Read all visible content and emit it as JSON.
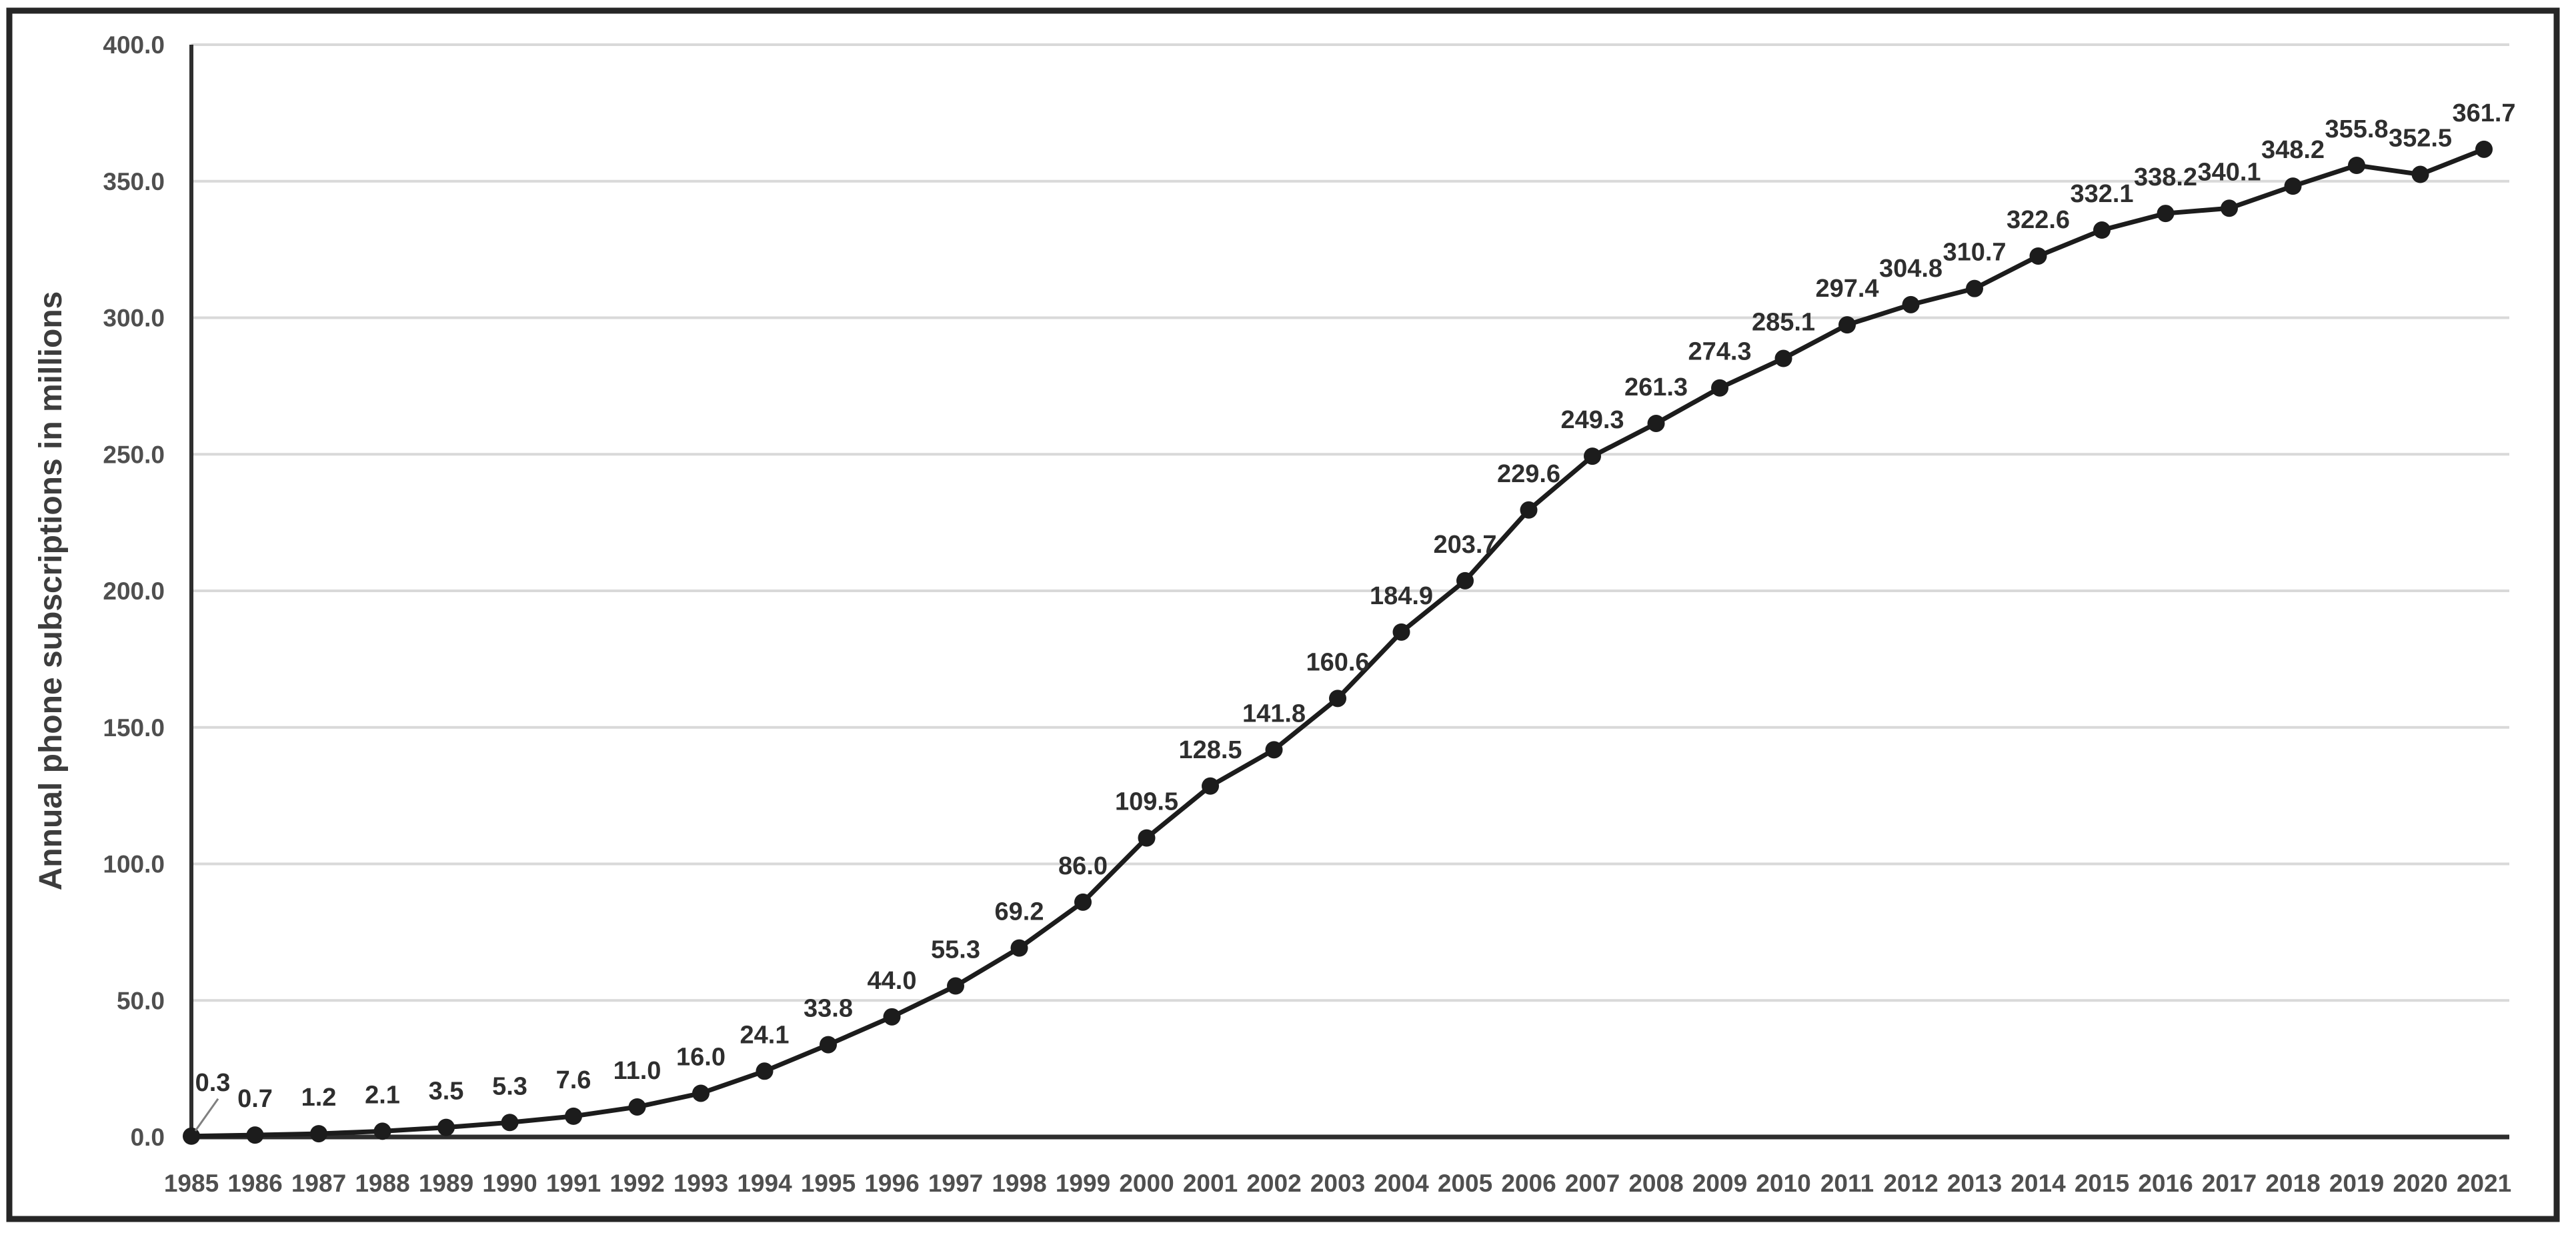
{
  "chart_data": {
    "type": "line",
    "title": "",
    "xlabel": "",
    "ylabel": "Annual phone subscriptions in millions",
    "categories": [
      1985,
      1986,
      1987,
      1988,
      1989,
      1990,
      1991,
      1992,
      1993,
      1994,
      1995,
      1996,
      1997,
      1998,
      1999,
      2000,
      2001,
      2002,
      2003,
      2004,
      2005,
      2006,
      2007,
      2008,
      2009,
      2010,
      2011,
      2012,
      2013,
      2014,
      2015,
      2016,
      2017,
      2018,
      2019,
      2020,
      2021
    ],
    "series": [
      {
        "name": "Annual phone subscriptions in millions",
        "values": [
          0.3,
          0.7,
          1.2,
          2.1,
          3.5,
          5.3,
          7.6,
          11.0,
          16.0,
          24.1,
          33.8,
          44.0,
          55.3,
          69.2,
          86.0,
          109.5,
          128.5,
          141.8,
          160.6,
          184.9,
          203.7,
          229.6,
          249.3,
          261.3,
          274.3,
          285.1,
          297.4,
          304.8,
          310.7,
          322.6,
          332.1,
          338.2,
          340.1,
          348.2,
          355.8,
          352.5,
          361.7
        ]
      }
    ],
    "data_labels_visible": true,
    "data_label_decimals": 1,
    "first_label_has_leader_line": true,
    "ylim": [
      0,
      400
    ],
    "ytick_step": 50,
    "ytick_decimals": 1,
    "grid": true,
    "legend_position": "none",
    "colors": {
      "line": "#1c1c1c",
      "marker": "#1c1c1c",
      "gridline": "#d9d9d9",
      "axis": "#2e2e2e",
      "tick_label": "#4f4f4f",
      "data_label": "#2e2e2e",
      "border": "#262626",
      "background": "#ffffff",
      "leader_line": "#808080"
    }
  }
}
